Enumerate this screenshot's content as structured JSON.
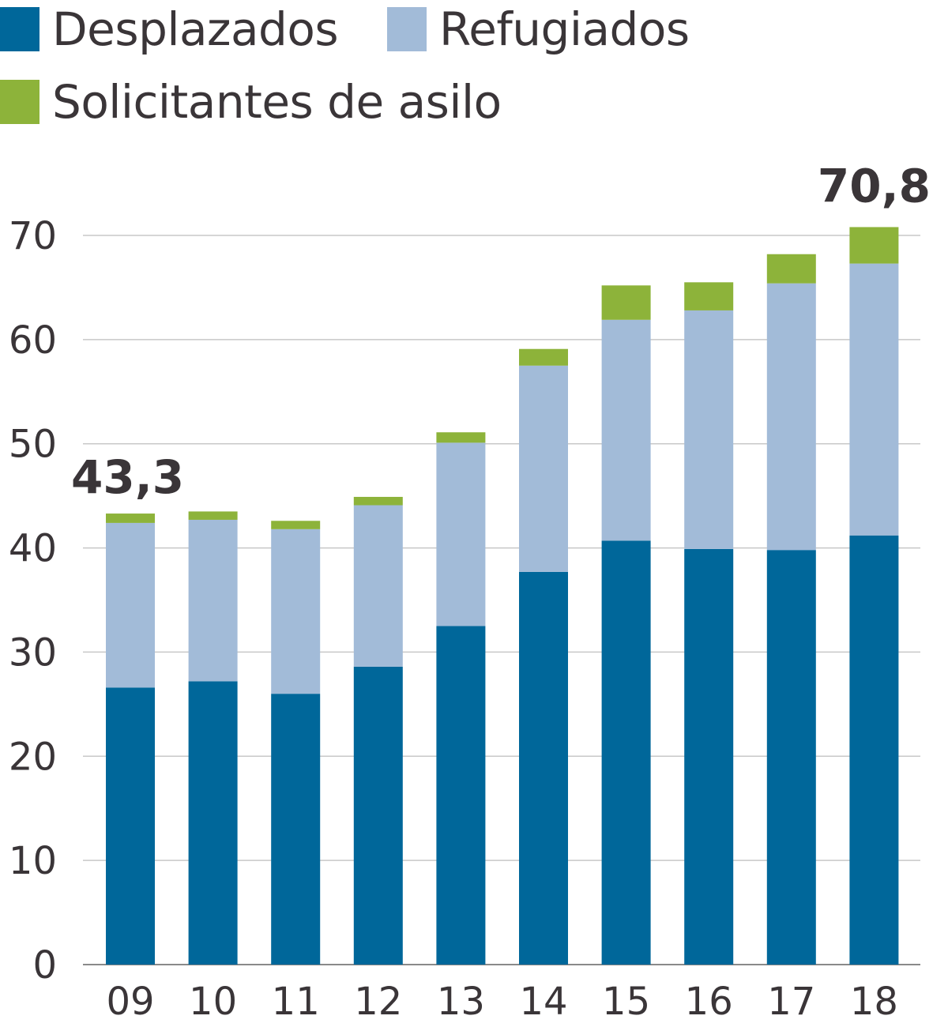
{
  "legend": {
    "items": [
      {
        "label": "Desplazados",
        "color": "#00679a"
      },
      {
        "label": "Refugiados",
        "color": "#a2bbd8"
      },
      {
        "label": "Solicitantes de asilo",
        "color": "#8db33a"
      }
    ]
  },
  "chart_data": {
    "type": "bar",
    "stacked": true,
    "categories": [
      "09",
      "10",
      "11",
      "12",
      "13",
      "14",
      "15",
      "16",
      "17",
      "18"
    ],
    "series": [
      {
        "name": "Desplazados",
        "color": "#00679a",
        "values": [
          26.6,
          27.2,
          26.0,
          28.6,
          32.5,
          37.7,
          40.7,
          39.9,
          39.8,
          41.2
        ]
      },
      {
        "name": "Refugiados",
        "color": "#a2bbd8",
        "values": [
          15.8,
          15.5,
          15.8,
          15.5,
          17.6,
          19.8,
          21.2,
          22.9,
          25.6,
          26.1
        ]
      },
      {
        "name": "Solicitantes de asilo",
        "color": "#8db33a",
        "values": [
          0.9,
          0.8,
          0.8,
          0.8,
          1.0,
          1.6,
          3.3,
          2.7,
          2.8,
          3.5
        ]
      }
    ],
    "ylim": [
      0,
      70
    ],
    "yticks": [
      "0",
      "10",
      "20",
      "30",
      "40",
      "50",
      "60",
      "70"
    ],
    "grid": true,
    "legend_position": "top-left",
    "annotations": [
      {
        "category": "09",
        "text": "43,3"
      },
      {
        "category": "18",
        "text": "70,8"
      }
    ]
  }
}
